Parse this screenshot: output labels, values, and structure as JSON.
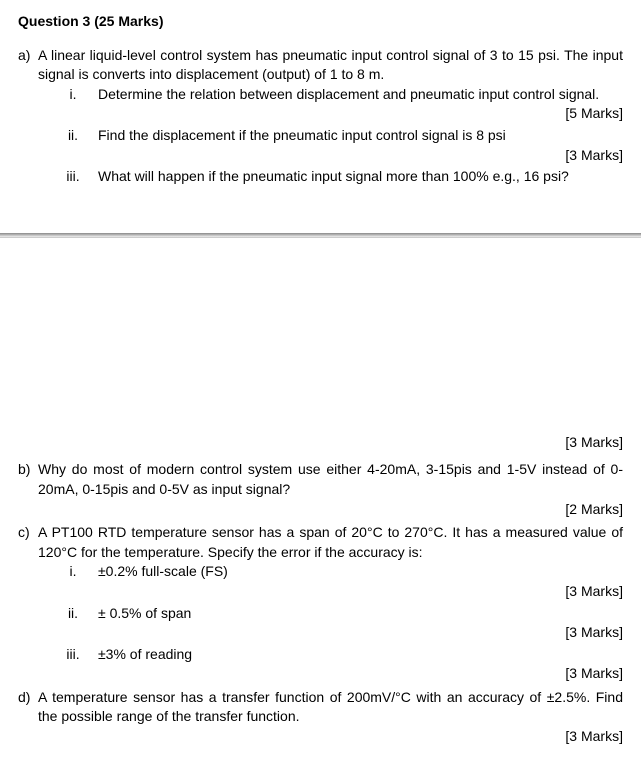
{
  "title": "Question 3 (25 Marks)",
  "partA": {
    "letter": "a)",
    "intro": "A linear liquid-level control system has pneumatic input control signal of 3 to 15 psi. The input signal is converts into displacement (output) of 1 to 8 m.",
    "i": {
      "num": "i.",
      "text": "Determine the relation between displacement and pneumatic input control signal.",
      "marks": "[5 Marks]"
    },
    "ii": {
      "num": "ii.",
      "text": "Find the displacement if the pneumatic input control signal is 8 psi",
      "marks": "[3 Marks]"
    },
    "iii": {
      "num": "iii.",
      "text": "What will happen if the pneumatic input signal more than 100% e.g., 16 psi?",
      "marks": "[3 Marks]"
    }
  },
  "partB": {
    "letter": "b)",
    "text": "Why do most of modern control system use either 4-20mA, 3-15pis and 1-5V instead of 0-20mA, 0-15pis and 0-5V as input signal?",
    "marks": "[2 Marks]"
  },
  "partC": {
    "letter": "c)",
    "intro": "A PT100 RTD temperature sensor has a span of 20°C to 270°C. It has a measured value of 120°C for the temperature. Specify the error if the accuracy is:",
    "i": {
      "num": "i.",
      "text": "±0.2% full-scale (FS)",
      "marks": "[3 Marks]"
    },
    "ii": {
      "num": "ii.",
      "text": "± 0.5% of span",
      "marks": "[3 Marks]"
    },
    "iii": {
      "num": "iii.",
      "text": "±3% of reading",
      "marks": "[3 Marks]"
    }
  },
  "partD": {
    "letter": "d)",
    "text": "A temperature sensor has a transfer function of 200mV/°C with an accuracy of ±2.5%. Find the possible range of the transfer function.",
    "marks": "[3 Marks]"
  }
}
